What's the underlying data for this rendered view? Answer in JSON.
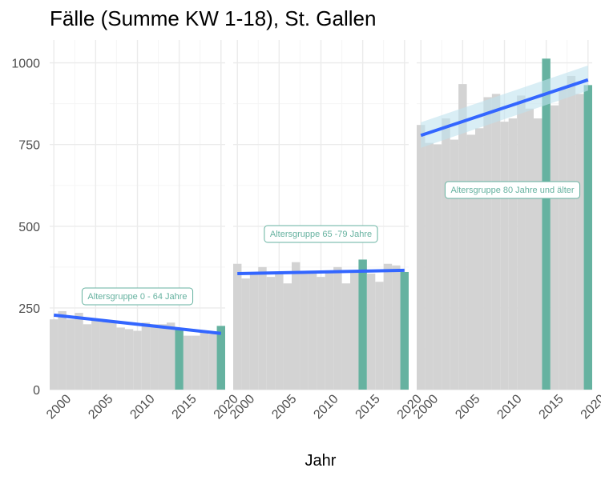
{
  "chart_data": {
    "type": "bar",
    "title": "Fälle (Summe KW 1-18), St. Gallen",
    "xlabel": "Jahr",
    "ylabel": "",
    "ylim": [
      0,
      1070
    ],
    "xlim": [
      1999.5,
      2020.5
    ],
    "x_ticks": [
      "2000",
      "2005",
      "2010",
      "2015",
      "2020"
    ],
    "y_ticks": [
      "0",
      "250",
      "500",
      "750",
      "1000"
    ],
    "x": [
      2000,
      2001,
      2002,
      2003,
      2004,
      2005,
      2006,
      2007,
      2008,
      2009,
      2010,
      2011,
      2012,
      2013,
      2014,
      2015,
      2016,
      2017,
      2018,
      2019,
      2020
    ],
    "highlight_years": [
      2015,
      2020
    ],
    "colors": {
      "bar": "#d3d3d3",
      "highlight": "#66b2a0",
      "trend": "#3366ff",
      "band": "#bfe2ee",
      "grid_major": "#ebebeb",
      "grid_minor": "#f5f5f5",
      "annotation": "#66b2a0"
    },
    "panels": [
      {
        "label": "Altersgruppe 0 - 64 Jahre",
        "values": [
          215,
          240,
          215,
          235,
          200,
          215,
          210,
          205,
          190,
          185,
          180,
          205,
          200,
          200,
          205,
          185,
          165,
          165,
          175,
          170,
          195
        ],
        "trend": [
          228,
          172
        ]
      },
      {
        "label": "Altersgruppe 65 -79 Jahre",
        "values": [
          385,
          340,
          355,
          375,
          345,
          355,
          325,
          390,
          360,
          360,
          345,
          365,
          375,
          325,
          360,
          398,
          355,
          330,
          385,
          380,
          360
        ],
        "trend": [
          355,
          365
        ]
      },
      {
        "label": "Altersgruppe 80 Jahre und älter",
        "values": [
          810,
          755,
          750,
          830,
          765,
          935,
          780,
          800,
          895,
          905,
          820,
          830,
          900,
          860,
          830,
          1013,
          870,
          920,
          960,
          905,
          932
        ],
        "trend": [
          778,
          948
        ],
        "band_low": [
          740,
          915
        ],
        "band_high": [
          818,
          992
        ]
      }
    ]
  }
}
